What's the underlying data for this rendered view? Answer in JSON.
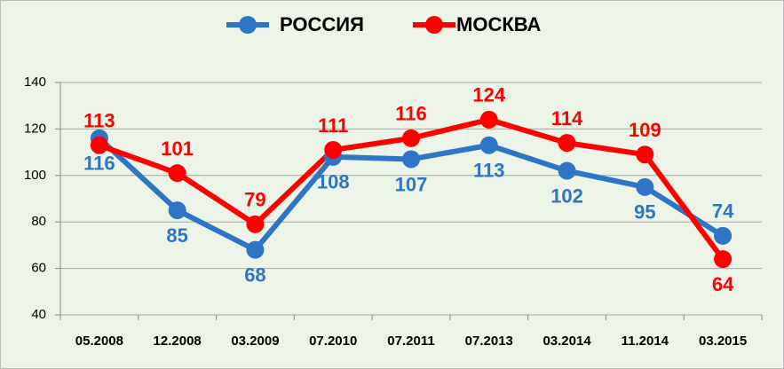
{
  "chart_data": {
    "type": "line",
    "categories": [
      "05.2008",
      "12.2008",
      "03.2009",
      "07.2010",
      "07.2011",
      "07.2013",
      "03.2014",
      "11.2014",
      "03.2015"
    ],
    "series": [
      {
        "name": "РОССИЯ",
        "color": "#2f75c5",
        "values": [
          116,
          85,
          68,
          108,
          107,
          113,
          102,
          95,
          74
        ]
      },
      {
        "name": "МОСКВА",
        "color": "#ff0000",
        "values": [
          113,
          101,
          79,
          111,
          116,
          124,
          114,
          109,
          64
        ]
      }
    ],
    "ylim": [
      40,
      140
    ],
    "yticks": [
      40,
      60,
      80,
      100,
      120,
      140
    ],
    "grid": true
  }
}
